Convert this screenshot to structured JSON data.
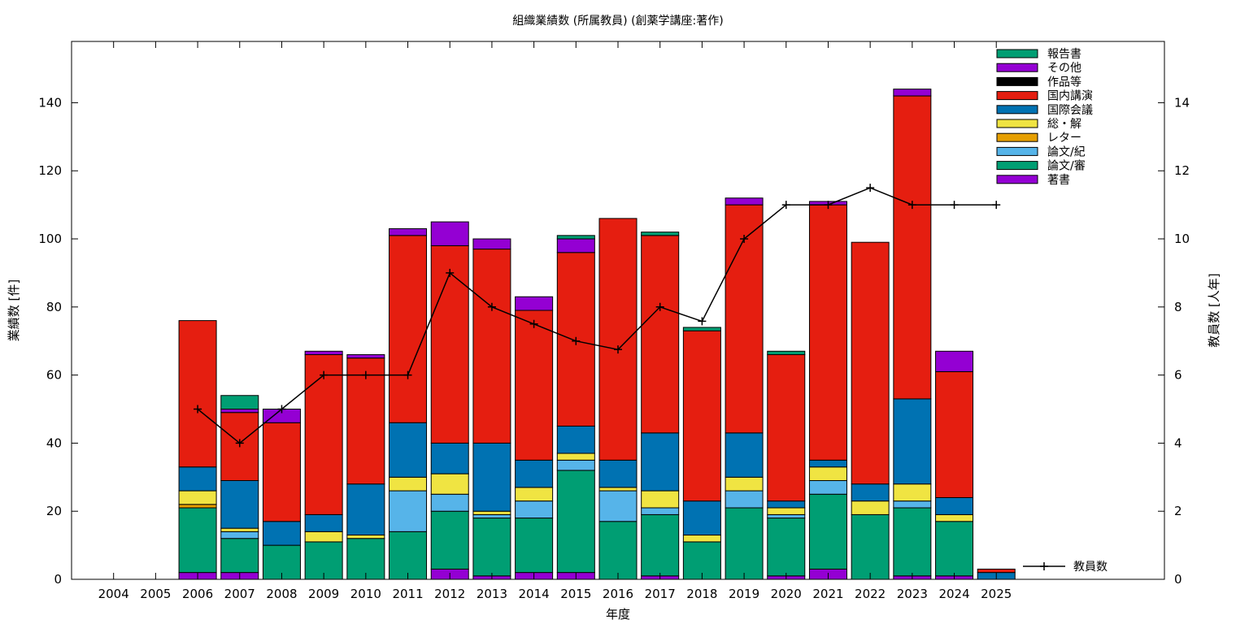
{
  "chart_data": {
    "type": "bar",
    "stacked": true,
    "title": "組織業績数 (所属教員) (創薬学講座:著作)",
    "xlabel": "年度",
    "ylabel": "業績数 [件]",
    "y2label": "教員数 [人年]",
    "categories": [
      "2004",
      "2005",
      "2006",
      "2007",
      "2008",
      "2009",
      "2010",
      "2011",
      "2012",
      "2013",
      "2014",
      "2015",
      "2016",
      "2017",
      "2018",
      "2019",
      "2020",
      "2021",
      "2022",
      "2023",
      "2024",
      "2025"
    ],
    "ylim": [
      0,
      158
    ],
    "y2lim": [
      0,
      15.8
    ],
    "yticks": [
      0,
      20,
      40,
      60,
      80,
      100,
      120,
      140
    ],
    "y2ticks": [
      0,
      2,
      4,
      6,
      8,
      10,
      12,
      14
    ],
    "legend_position": "top-right",
    "series": [
      {
        "name": "著書",
        "color": "#9400d3",
        "values": [
          0,
          0,
          2,
          2,
          0,
          0,
          0,
          0,
          3,
          1,
          2,
          2,
          0,
          1,
          0,
          0,
          1,
          3,
          0,
          1,
          1,
          0
        ]
      },
      {
        "name": "論文/審",
        "color": "#009e73",
        "values": [
          0,
          0,
          19,
          10,
          10,
          11,
          12,
          14,
          17,
          17,
          16,
          30,
          17,
          18,
          11,
          21,
          17,
          22,
          19,
          20,
          16,
          0
        ]
      },
      {
        "name": "論文/紀",
        "color": "#56b4e9",
        "values": [
          0,
          0,
          0,
          2,
          0,
          0,
          0,
          12,
          5,
          1,
          5,
          3,
          9,
          2,
          0,
          5,
          1,
          4,
          0,
          2,
          0,
          0
        ]
      },
      {
        "name": "レター",
        "color": "#e69f00",
        "values": [
          0,
          0,
          1,
          0,
          0,
          0,
          0,
          0,
          0,
          0,
          0,
          0,
          0,
          0,
          0,
          0,
          0,
          0,
          0,
          0,
          0,
          0
        ]
      },
      {
        "name": "総・解",
        "color": "#f0e442",
        "values": [
          0,
          0,
          4,
          1,
          0,
          3,
          1,
          4,
          6,
          1,
          4,
          2,
          1,
          5,
          2,
          4,
          2,
          4,
          4,
          5,
          2,
          0
        ]
      },
      {
        "name": "国際会議",
        "color": "#0072b2",
        "values": [
          0,
          0,
          7,
          14,
          7,
          5,
          15,
          16,
          9,
          20,
          8,
          8,
          8,
          17,
          10,
          13,
          2,
          2,
          5,
          25,
          5,
          2
        ]
      },
      {
        "name": "国内講演",
        "color": "#e51e10",
        "values": [
          0,
          0,
          43,
          20,
          29,
          47,
          37,
          55,
          58,
          57,
          44,
          51,
          71,
          58,
          50,
          67,
          43,
          75,
          71,
          89,
          37,
          1
        ]
      },
      {
        "name": "作品等",
        "color": "#000000",
        "values": [
          0,
          0,
          0,
          0,
          0,
          0,
          0,
          0,
          0,
          0,
          0,
          0,
          0,
          0,
          0,
          0,
          0,
          0,
          0,
          0,
          0,
          0
        ]
      },
      {
        "name": "その他",
        "color": "#9400d3",
        "values": [
          0,
          0,
          0,
          1,
          4,
          1,
          1,
          2,
          7,
          3,
          4,
          4,
          0,
          0,
          0,
          2,
          0,
          1,
          0,
          2,
          6,
          0
        ]
      },
      {
        "name": "報告書",
        "color": "#009e73",
        "values": [
          0,
          0,
          0,
          4,
          0,
          0,
          0,
          0,
          0,
          0,
          0,
          1,
          0,
          1,
          1,
          0,
          1,
          0,
          0,
          0,
          0,
          0
        ]
      }
    ],
    "line": {
      "name": "教員数",
      "color": "#000000",
      "axis": "y2",
      "categories": [
        "2006",
        "2007",
        "2008",
        "2009",
        "2010",
        "2011",
        "2012",
        "2013",
        "2014",
        "2015",
        "2016",
        "2017",
        "2018",
        "2019",
        "2020",
        "2021",
        "2022",
        "2023",
        "2024",
        "2025"
      ],
      "values": [
        5,
        4,
        5,
        6,
        6,
        6,
        9,
        8,
        7.5,
        7,
        6.75,
        8,
        7.58,
        10,
        11,
        11,
        11.5,
        11,
        11,
        11
      ]
    }
  }
}
